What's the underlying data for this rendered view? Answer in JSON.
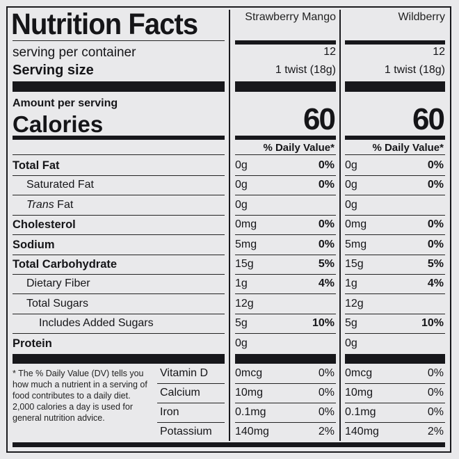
{
  "header": {
    "title": "Nutrition Facts",
    "servings_label": "serving per container",
    "serving_size_label": "Serving size",
    "amount_per_serving": "Amount per serving",
    "calories_label": "Calories",
    "footnote": "* The % Daily Value (DV) tells you how much a nutrient in a serving of food contributes to a daily diet. 2,000 calories a day is used for general nutrition advice."
  },
  "products": [
    {
      "name": "Strawberry Mango",
      "servings": "12",
      "serving_size": "1 twist (18g)",
      "calories": "60",
      "dv_header": "% Daily Value*"
    },
    {
      "name": "Wildberry",
      "servings": "12",
      "serving_size": "1 twist (18g)",
      "calories": "60",
      "dv_header": "% Daily Value*"
    }
  ],
  "nutrients": [
    {
      "label": "Total Fat",
      "bold": true,
      "indent": 0,
      "values": [
        {
          "amount": "0g",
          "dv": "0%"
        },
        {
          "amount": "0g",
          "dv": "0%"
        }
      ]
    },
    {
      "label": "Saturated Fat",
      "bold": false,
      "indent": 1,
      "values": [
        {
          "amount": "0g",
          "dv": "0%"
        },
        {
          "amount": "0g",
          "dv": "0%"
        }
      ]
    },
    {
      "label_italic": "Trans",
      "label": " Fat",
      "bold": false,
      "indent": 1,
      "values": [
        {
          "amount": "0g",
          "dv": ""
        },
        {
          "amount": "0g",
          "dv": ""
        }
      ]
    },
    {
      "label": "Cholesterol",
      "bold": true,
      "indent": 0,
      "values": [
        {
          "amount": "0mg",
          "dv": "0%"
        },
        {
          "amount": "0mg",
          "dv": "0%"
        }
      ]
    },
    {
      "label": "Sodium",
      "bold": true,
      "indent": 0,
      "values": [
        {
          "amount": "5mg",
          "dv": "0%"
        },
        {
          "amount": "5mg",
          "dv": "0%"
        }
      ]
    },
    {
      "label": "Total Carbohydrate",
      "bold": true,
      "indent": 0,
      "values": [
        {
          "amount": "15g",
          "dv": "5%"
        },
        {
          "amount": "15g",
          "dv": "5%"
        }
      ]
    },
    {
      "label": "Dietary Fiber",
      "bold": false,
      "indent": 1,
      "values": [
        {
          "amount": "1g",
          "dv": "4%"
        },
        {
          "amount": "1g",
          "dv": "4%"
        }
      ]
    },
    {
      "label": "Total Sugars",
      "bold": false,
      "indent": 1,
      "values": [
        {
          "amount": "12g",
          "dv": ""
        },
        {
          "amount": "12g",
          "dv": ""
        }
      ]
    },
    {
      "label": "Includes Added Sugars",
      "bold": false,
      "indent": 2,
      "values": [
        {
          "amount": "5g",
          "dv": "10%"
        },
        {
          "amount": "5g",
          "dv": "10%"
        }
      ]
    },
    {
      "label": "Protein",
      "bold": true,
      "indent": 0,
      "values": [
        {
          "amount": "0g",
          "dv": ""
        },
        {
          "amount": "0g",
          "dv": ""
        }
      ]
    }
  ],
  "vitamins": [
    {
      "label": "Vitamin D",
      "values": [
        {
          "amount": "0mcg",
          "dv": "0%"
        },
        {
          "amount": "0mcg",
          "dv": "0%"
        }
      ]
    },
    {
      "label": "Calcium",
      "values": [
        {
          "amount": "10mg",
          "dv": "0%"
        },
        {
          "amount": "10mg",
          "dv": "0%"
        }
      ]
    },
    {
      "label": "Iron",
      "values": [
        {
          "amount": "0.1mg",
          "dv": "0%"
        },
        {
          "amount": "0.1mg",
          "dv": "0%"
        }
      ]
    },
    {
      "label": "Potassium",
      "values": [
        {
          "amount": "140mg",
          "dv": "2%"
        },
        {
          "amount": "140mg",
          "dv": "2%"
        }
      ]
    }
  ]
}
